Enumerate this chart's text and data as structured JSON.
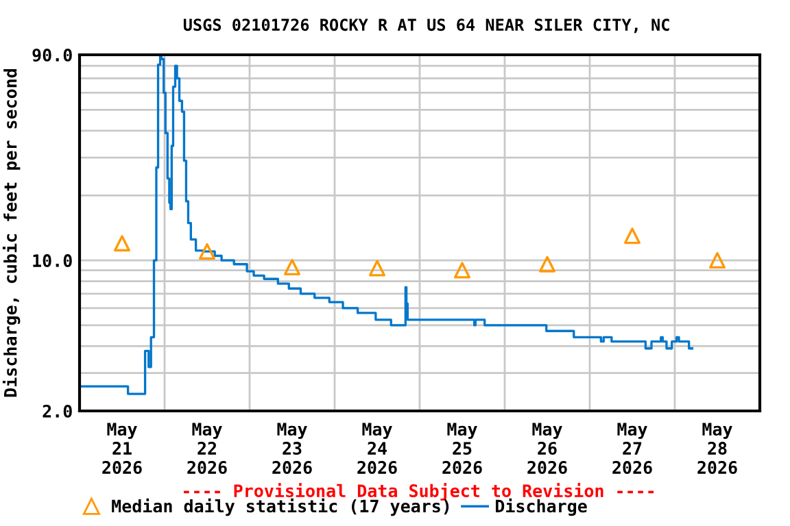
{
  "chart_data": {
    "type": "step",
    "title": "USGS 02101726 ROCKY R AT US 64 NEAR SILER CITY, NC",
    "ylabel": "Discharge, cubic feet per second",
    "annotations": [
      "---- Provisional Data Subject to Revision ----"
    ],
    "log": "y",
    "xlim": [
      "2026-05-21T00:00",
      "2026-05-29T00:00"
    ],
    "xticks": [
      {
        "value": "2026-05-21T00:00",
        "label": null
      },
      {
        "value": "2026-05-21T12:00",
        "label": "May\n21\n2026"
      },
      {
        "value": "2026-05-22T00:00",
        "label": null
      },
      {
        "value": "2026-05-22T12:00",
        "label": "May\n22\n2026"
      },
      {
        "value": "2026-05-23T00:00",
        "label": null
      },
      {
        "value": "2026-05-23T12:00",
        "label": "May\n23\n2026"
      },
      {
        "value": "2026-05-24T00:00",
        "label": null
      },
      {
        "value": "2026-05-24T12:00",
        "label": "May\n24\n2026"
      },
      {
        "value": "2026-05-25T00:00",
        "label": null
      },
      {
        "value": "2026-05-25T12:00",
        "label": "May\n25\n2026"
      },
      {
        "value": "2026-05-26T00:00",
        "label": null
      },
      {
        "value": "2026-05-26T12:00",
        "label": "May\n26\n2026"
      },
      {
        "value": "2026-05-27T00:00",
        "label": null
      },
      {
        "value": "2026-05-27T12:00",
        "label": "May\n27\n2026"
      },
      {
        "value": "2026-05-28T00:00",
        "label": null
      },
      {
        "value": "2026-05-28T12:00",
        "label": "May\n28\n2026"
      },
      {
        "value": "2026-05-29T00:00",
        "label": null
      }
    ],
    "ylim": [
      2,
      90
    ],
    "yticks": [
      {
        "value": 2,
        "label": "2.0"
      },
      {
        "value": 3,
        "label": null
      },
      {
        "value": 4,
        "label": null
      },
      {
        "value": 5,
        "label": null
      },
      {
        "value": 6,
        "label": null
      },
      {
        "value": 7,
        "label": null
      },
      {
        "value": 8,
        "label": null
      },
      {
        "value": 9,
        "label": null
      },
      {
        "value": 10,
        "label": "10.0"
      },
      {
        "value": 20,
        "label": null
      },
      {
        "value": 30,
        "label": null
      },
      {
        "value": 40,
        "label": null
      },
      {
        "value": 50,
        "label": null
      },
      {
        "value": 60,
        "label": null
      },
      {
        "value": 70,
        "label": null
      },
      {
        "value": 80,
        "label": null
      },
      {
        "value": 90,
        "label": "90.0"
      }
    ],
    "grid": true,
    "legend": "bottom",
    "series": [
      {
        "name": "Median daily statistic (17 years)",
        "type": "scatter",
        "marker": "triangle",
        "color": "#ff9900",
        "x": [
          "2026-05-21T12:00",
          "2026-05-22T12:00",
          "2026-05-23T12:00",
          "2026-05-24T12:00",
          "2026-05-25T12:00",
          "2026-05-26T12:00",
          "2026-05-27T12:00",
          "2026-05-28T12:00"
        ],
        "values": [
          12,
          11,
          9.3,
          9.2,
          9.0,
          9.6,
          13,
          10
        ]
      },
      {
        "name": "Discharge",
        "color": "#0077cc",
        "x": [
          "2026-05-21T00:00",
          "2026-05-21T13:40",
          "2026-05-21T18:30",
          "2026-05-21T19:30",
          "2026-05-21T20:10",
          "2026-05-21T21:00",
          "2026-05-21T21:40",
          "2026-05-21T22:10",
          "2026-05-21T22:45",
          "2026-05-21T23:05",
          "2026-05-21T23:45",
          "2026-05-22T00:15",
          "2026-05-22T00:50",
          "2026-05-22T01:20",
          "2026-05-22T01:40",
          "2026-05-22T02:00",
          "2026-05-22T02:25",
          "2026-05-22T03:00",
          "2026-05-22T03:30",
          "2026-05-22T04:10",
          "2026-05-22T04:55",
          "2026-05-22T05:30",
          "2026-05-22T06:05",
          "2026-05-22T06:40",
          "2026-05-22T07:25",
          "2026-05-22T08:50",
          "2026-05-22T11:00",
          "2026-05-22T14:10",
          "2026-05-22T16:05",
          "2026-05-22T19:35",
          "2026-05-22T23:15",
          "2026-05-23T01:10",
          "2026-05-23T04:05",
          "2026-05-23T08:00",
          "2026-05-23T11:05",
          "2026-05-23T14:25",
          "2026-05-23T18:20",
          "2026-05-23T22:30",
          "2026-05-24T02:20",
          "2026-05-24T06:30",
          "2026-05-24T11:35",
          "2026-05-24T15:55",
          "2026-05-24T20:00",
          "2026-05-24T20:15",
          "2026-05-24T20:35",
          "2026-05-25T15:25",
          "2026-05-25T15:45",
          "2026-05-25T18:20",
          "2026-05-26T11:45",
          "2026-05-26T19:30",
          "2026-05-27T03:10",
          "2026-05-27T03:55",
          "2026-05-27T06:10",
          "2026-05-27T15:45",
          "2026-05-27T17:25",
          "2026-05-27T20:05",
          "2026-05-27T20:35",
          "2026-05-27T21:40",
          "2026-05-27T23:10",
          "2026-05-28T00:30",
          "2026-05-28T01:10",
          "2026-05-28T04:00",
          "2026-05-28T04:55"
        ],
        "values": [
          2.6,
          2.4,
          3.8,
          3.2,
          4.4,
          10,
          27,
          81,
          90,
          86,
          60,
          39,
          24,
          18.5,
          17.3,
          34,
          64,
          80,
          70,
          55,
          49,
          29,
          18.8,
          14.9,
          12.5,
          11.1,
          11.0,
          10.5,
          10.0,
          9.6,
          8.9,
          8.5,
          8.2,
          7.8,
          7.4,
          7.0,
          6.7,
          6.4,
          6.0,
          5.7,
          5.3,
          5.0,
          7.5,
          6.3,
          5.3,
          5.0,
          5.3,
          5.0,
          4.7,
          4.4,
          4.2,
          4.4,
          4.2,
          3.9,
          4.2,
          4.4,
          4.2,
          3.9,
          4.2,
          4.4,
          4.2,
          3.9,
          3.9
        ]
      }
    ]
  }
}
